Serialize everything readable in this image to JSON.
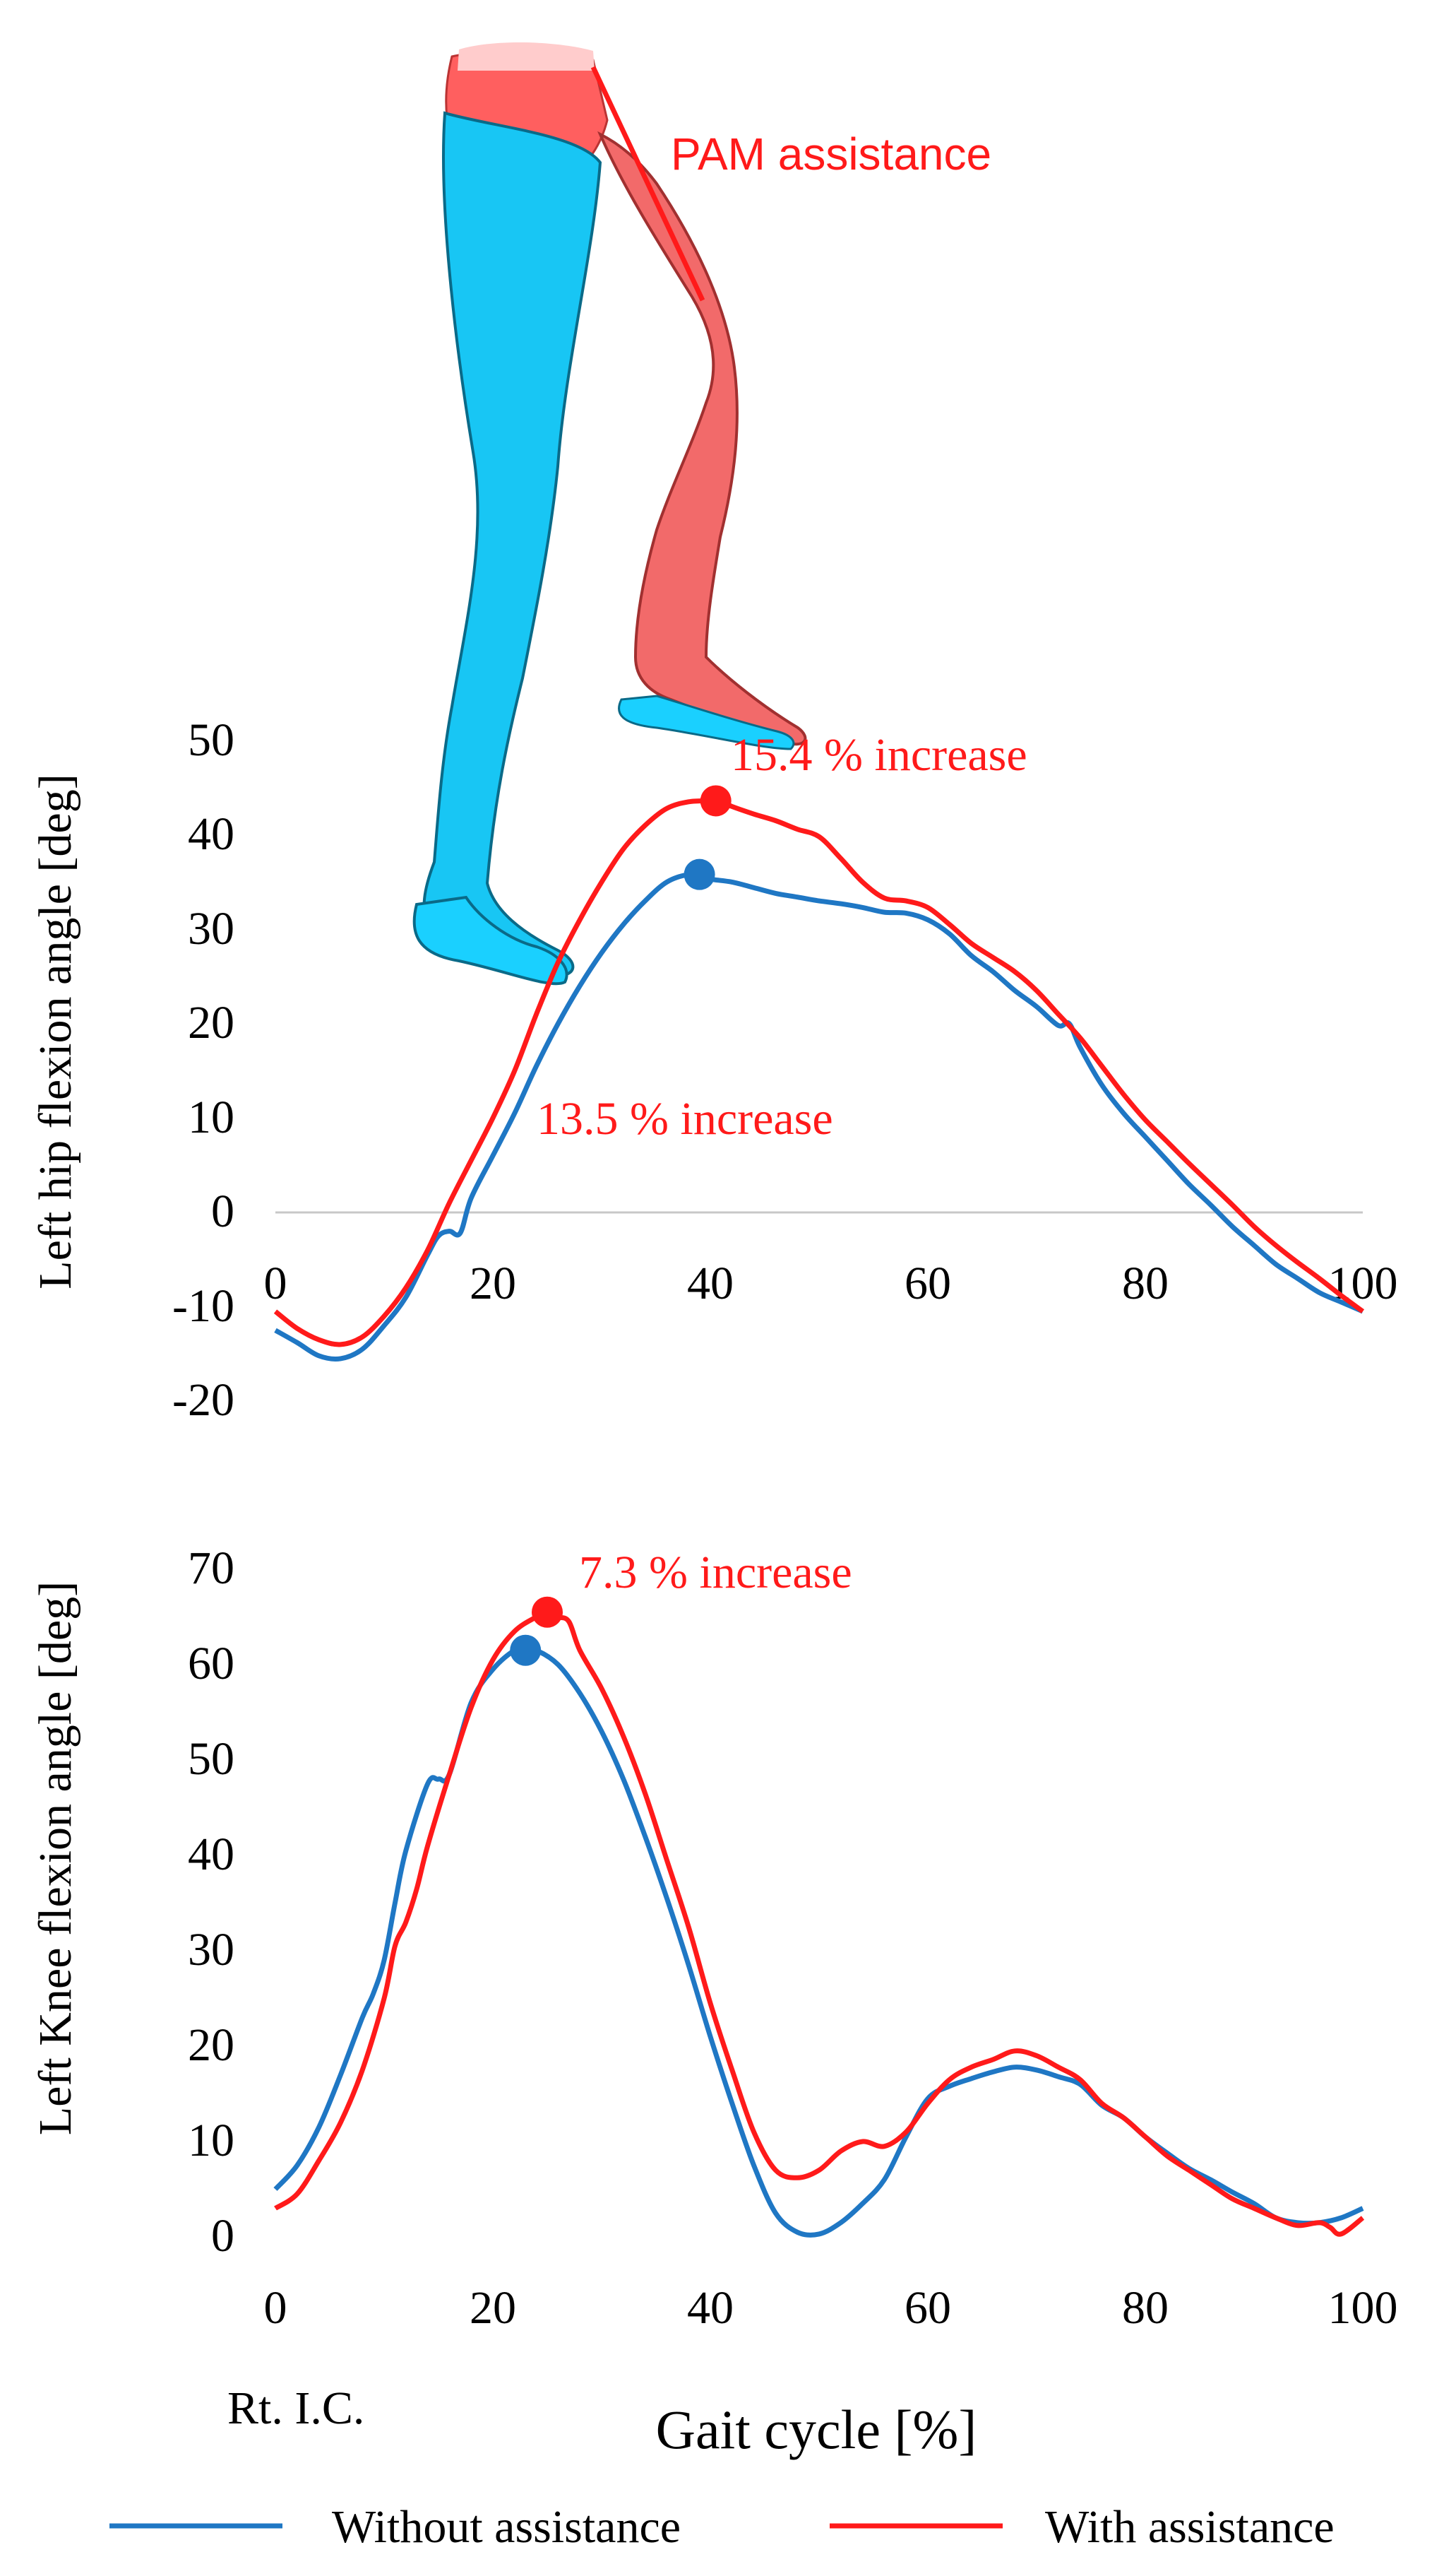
{
  "illustration": {
    "label": "PAM assistance"
  },
  "colors": {
    "without": "#1f77c4",
    "with": "#ff1a1a",
    "zero_line": "#c8c8c8"
  },
  "shared_xlabel": "Gait cycle [%]",
  "ic_label": "Rt. I.C.",
  "legend": {
    "without_label": "Without assistance",
    "with_label": "With assistance"
  },
  "chart_data": [
    {
      "type": "line",
      "title": "",
      "xlabel": "",
      "ylabel": "Left hip flexion angle [deg]",
      "xlim": [
        0,
        100
      ],
      "ylim": [
        -20,
        50
      ],
      "x_ticks": [
        "0",
        "20",
        "40",
        "60",
        "80",
        "100"
      ],
      "y_ticks": [
        "50",
        "40",
        "30",
        "20",
        "10",
        "0",
        "-10",
        "-20"
      ],
      "series": [
        {
          "name": "Without assistance",
          "x": [
            0,
            2,
            4,
            6,
            8,
            10,
            12,
            14,
            15,
            16,
            17,
            18,
            20,
            22,
            24,
            26,
            28,
            30,
            32,
            34,
            36,
            38,
            39,
            40,
            42,
            44,
            46,
            48,
            50,
            52,
            54,
            56,
            58,
            60,
            62,
            64,
            66,
            68,
            70,
            72,
            73,
            74,
            76,
            78,
            80,
            82,
            84,
            86,
            88,
            90,
            92,
            94,
            96,
            98,
            100
          ],
          "values": [
            -12.5,
            -13.8,
            -15.2,
            -15.5,
            -14.5,
            -12,
            -9,
            -4.5,
            -2.5,
            -2,
            -2.2,
            1.5,
            6,
            10.5,
            15.5,
            20,
            24,
            27.5,
            30.5,
            33,
            35,
            35.8,
            35.6,
            35.3,
            35,
            34.4,
            33.8,
            33.4,
            33,
            32.7,
            32.3,
            31.8,
            31.7,
            31,
            29.5,
            27.2,
            25.5,
            23.5,
            21.8,
            19.8,
            20,
            17.5,
            13.5,
            10.5,
            8,
            5.5,
            3,
            0.8,
            -1.5,
            -3.5,
            -5.5,
            -7,
            -8.5,
            -9.5,
            -10.5
          ]
        },
        {
          "name": "With assistance",
          "x": [
            0,
            2,
            4,
            6,
            8,
            10,
            12,
            14,
            16,
            18,
            20,
            22,
            24,
            26,
            28,
            30,
            32,
            34,
            36,
            38,
            40,
            41,
            42,
            44,
            46,
            48,
            50,
            52,
            54,
            56,
            58,
            60,
            62,
            64,
            66,
            68,
            70,
            72,
            74,
            76,
            78,
            80,
            82,
            84,
            86,
            88,
            90,
            92,
            94,
            96,
            98,
            100
          ],
          "values": [
            -10.5,
            -12.3,
            -13.5,
            -14,
            -13.2,
            -11,
            -8,
            -4,
            1,
            5.5,
            10,
            15,
            21,
            26.5,
            31,
            35,
            38.5,
            41,
            42.8,
            43.5,
            43.6,
            43.5,
            43,
            42.2,
            41.5,
            40.6,
            39.8,
            37.5,
            35,
            33.3,
            33,
            32.3,
            30.5,
            28.5,
            27,
            25.5,
            23.5,
            21,
            18.5,
            15.5,
            12.5,
            9.8,
            7.5,
            5.2,
            3,
            0.8,
            -1.5,
            -3.5,
            -5.3,
            -7,
            -8.8,
            -10.5
          ]
        }
      ],
      "peaks": [
        {
          "series": "Without assistance",
          "x": 39,
          "y": 35.8
        },
        {
          "series": "With assistance",
          "x": 40.5,
          "y": 43.6
        }
      ],
      "annotations": [
        "15.4 % increase",
        "13.5 % increase"
      ]
    },
    {
      "type": "line",
      "title": "",
      "xlabel": "Gait cycle [%]",
      "ylabel": "Left Knee flexion angle [deg]",
      "xlim": [
        0,
        100
      ],
      "ylim": [
        0,
        70
      ],
      "x_ticks": [
        "0",
        "20",
        "40",
        "60",
        "80",
        "100"
      ],
      "y_ticks": [
        "70",
        "60",
        "50",
        "40",
        "30",
        "20",
        "10",
        "0"
      ],
      "series": [
        {
          "name": "Without assistance",
          "x": [
            0,
            2,
            4,
            6,
            8,
            9,
            10,
            11,
            12,
            14,
            15,
            16,
            18,
            20,
            22,
            23,
            24,
            26,
            28,
            30,
            32,
            34,
            36,
            38,
            40,
            42,
            44,
            46,
            48,
            50,
            52,
            54,
            56,
            58,
            60,
            62,
            64,
            66,
            68,
            70,
            72,
            74,
            76,
            78,
            80,
            82,
            84,
            86,
            88,
            90,
            92,
            94,
            96,
            98,
            100
          ],
          "values": [
            5,
            7.5,
            11.5,
            17,
            23,
            25.5,
            29,
            35,
            40.5,
            47.5,
            48,
            48.5,
            56,
            59.5,
            61.5,
            61.5,
            61.5,
            60,
            57,
            53,
            48,
            42,
            35.5,
            28.5,
            21,
            14,
            7.5,
            2.5,
            0.5,
            0.3,
            1.5,
            3.5,
            6,
            10.5,
            14.5,
            15.8,
            16.6,
            17.3,
            17.8,
            17.5,
            16.8,
            16,
            13.8,
            12.5,
            10.5,
            8.8,
            7.2,
            6,
            4.7,
            3.5,
            2,
            1.5,
            1.5,
            2,
            3
          ]
        },
        {
          "name": "With assistance",
          "x": [
            0,
            2,
            4,
            6,
            8,
            10,
            11,
            12,
            13,
            14,
            16,
            18,
            20,
            22,
            24,
            25,
            26,
            27,
            28,
            30,
            32,
            34,
            36,
            38,
            40,
            42,
            44,
            46,
            48,
            50,
            52,
            54,
            56,
            58,
            60,
            62,
            64,
            66,
            68,
            70,
            72,
            74,
            76,
            78,
            80,
            82,
            84,
            86,
            88,
            90,
            92,
            94,
            96,
            97,
            98,
            100
          ],
          "values": [
            3,
            4.5,
            8,
            12,
            17.5,
            25,
            30.5,
            33,
            36.5,
            41,
            48.5,
            55.5,
            60.5,
            63.5,
            65,
            65.5,
            65,
            64.5,
            61.5,
            57.5,
            52.5,
            46.5,
            39.5,
            32.5,
            24.5,
            17.5,
            11,
            7,
            6.2,
            7,
            9,
            10,
            9.5,
            11,
            14,
            16.5,
            17.8,
            18.6,
            19.5,
            19,
            17.8,
            16.5,
            14,
            12.5,
            10.5,
            8.5,
            7,
            5.5,
            4,
            3,
            2,
            1.2,
            1.5,
            1,
            0.3,
            2
          ]
        }
      ],
      "peaks": [
        {
          "series": "Without assistance",
          "x": 23,
          "y": 61.5
        },
        {
          "series": "With assistance",
          "x": 25,
          "y": 65.5
        }
      ],
      "annotations": [
        "7.3 % increase"
      ]
    }
  ]
}
